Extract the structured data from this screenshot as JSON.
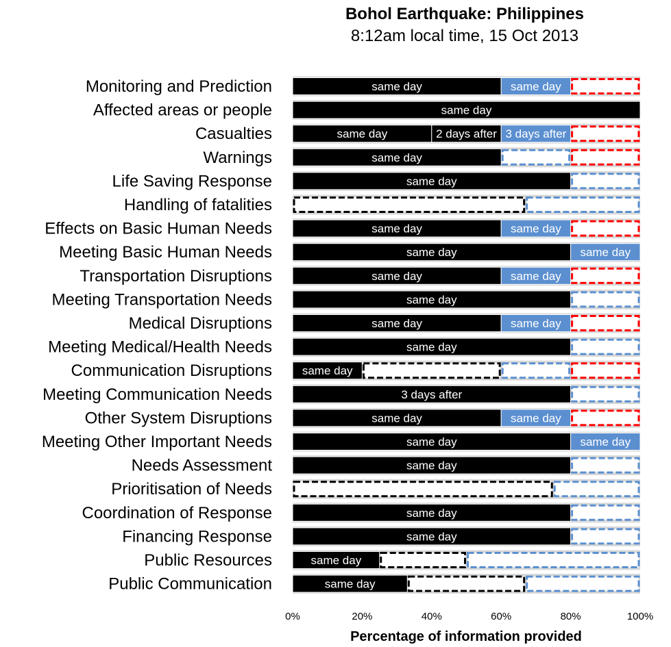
{
  "chart_data": {
    "type": "bar",
    "orientation": "horizontal",
    "stacked": true,
    "title": "Bohol Earthquake: Philippines",
    "subtitle": "8:12am local time, 15 Oct 2013",
    "xlabel": "Percentage of information provided",
    "xlim": [
      0,
      100
    ],
    "x_ticks": [
      "0%",
      "20%",
      "40%",
      "60%",
      "80%",
      "100%"
    ],
    "colors": {
      "solid_black": "#000000",
      "solid_blue": "#5b8fd0",
      "outline_black": "#000000",
      "outline_blue": "#5b8fd0",
      "outline_red": "#ff0000"
    },
    "categories": [
      {
        "label": "Monitoring and Prediction",
        "segments": [
          {
            "start": 0,
            "end": 60,
            "style": "solid_black",
            "label": "same day"
          },
          {
            "start": 60,
            "end": 80,
            "style": "solid_blue",
            "label": "same day"
          },
          {
            "start": 80,
            "end": 100,
            "style": "outline_red",
            "label": ""
          }
        ]
      },
      {
        "label": "Affected areas or people",
        "segments": [
          {
            "start": 0,
            "end": 100,
            "style": "solid_black",
            "label": "same day"
          }
        ]
      },
      {
        "label": "Casualties",
        "segments": [
          {
            "start": 0,
            "end": 40,
            "style": "solid_black",
            "label": "same day"
          },
          {
            "start": 40,
            "end": 60,
            "style": "solid_black",
            "label": "2 days after"
          },
          {
            "start": 60,
            "end": 80,
            "style": "solid_blue",
            "label": "3 days after"
          },
          {
            "start": 80,
            "end": 100,
            "style": "outline_red",
            "label": ""
          }
        ]
      },
      {
        "label": "Warnings",
        "segments": [
          {
            "start": 0,
            "end": 60,
            "style": "solid_black",
            "label": "same day"
          },
          {
            "start": 60,
            "end": 80,
            "style": "outline_blue",
            "label": ""
          },
          {
            "start": 80,
            "end": 100,
            "style": "outline_red",
            "label": ""
          }
        ]
      },
      {
        "label": "Life Saving Response",
        "segments": [
          {
            "start": 0,
            "end": 80,
            "style": "solid_black",
            "label": "same day"
          },
          {
            "start": 80,
            "end": 100,
            "style": "outline_blue",
            "label": ""
          }
        ]
      },
      {
        "label": "Handling of fatalities",
        "segments": [
          {
            "start": 0,
            "end": 67,
            "style": "outline_black",
            "label": ""
          },
          {
            "start": 67,
            "end": 100,
            "style": "outline_blue",
            "label": ""
          }
        ]
      },
      {
        "label": "Effects on Basic Human Needs",
        "segments": [
          {
            "start": 0,
            "end": 60,
            "style": "solid_black",
            "label": "same day"
          },
          {
            "start": 60,
            "end": 80,
            "style": "solid_blue",
            "label": "same day"
          },
          {
            "start": 80,
            "end": 100,
            "style": "outline_red",
            "label": ""
          }
        ]
      },
      {
        "label": "Meeting Basic Human Needs",
        "segments": [
          {
            "start": 0,
            "end": 80,
            "style": "solid_black",
            "label": "same day"
          },
          {
            "start": 80,
            "end": 100,
            "style": "solid_blue",
            "label": "same day"
          }
        ]
      },
      {
        "label": "Transportation Disruptions",
        "segments": [
          {
            "start": 0,
            "end": 60,
            "style": "solid_black",
            "label": "same day"
          },
          {
            "start": 60,
            "end": 80,
            "style": "solid_blue",
            "label": "same day"
          },
          {
            "start": 80,
            "end": 100,
            "style": "outline_red",
            "label": ""
          }
        ]
      },
      {
        "label": "Meeting Transportation Needs",
        "segments": [
          {
            "start": 0,
            "end": 80,
            "style": "solid_black",
            "label": "same day"
          },
          {
            "start": 80,
            "end": 100,
            "style": "outline_blue",
            "label": ""
          }
        ]
      },
      {
        "label": "Medical Disruptions",
        "segments": [
          {
            "start": 0,
            "end": 60,
            "style": "solid_black",
            "label": "same day"
          },
          {
            "start": 60,
            "end": 80,
            "style": "solid_blue",
            "label": "same day"
          },
          {
            "start": 80,
            "end": 100,
            "style": "outline_red",
            "label": ""
          }
        ]
      },
      {
        "label": "Meeting Medical/Health Needs",
        "segments": [
          {
            "start": 0,
            "end": 80,
            "style": "solid_black",
            "label": "same day"
          },
          {
            "start": 80,
            "end": 100,
            "style": "outline_blue",
            "label": ""
          }
        ]
      },
      {
        "label": "Communication Disruptions",
        "segments": [
          {
            "start": 0,
            "end": 20,
            "style": "solid_black",
            "label": "same day"
          },
          {
            "start": 20,
            "end": 60,
            "style": "outline_black",
            "label": ""
          },
          {
            "start": 60,
            "end": 80,
            "style": "outline_blue",
            "label": ""
          },
          {
            "start": 80,
            "end": 100,
            "style": "outline_red",
            "label": ""
          }
        ]
      },
      {
        "label": "Meeting Communication Needs",
        "segments": [
          {
            "start": 0,
            "end": 80,
            "style": "solid_black",
            "label": "3 days after"
          },
          {
            "start": 80,
            "end": 100,
            "style": "outline_blue",
            "label": ""
          }
        ]
      },
      {
        "label": "Other System Disruptions",
        "segments": [
          {
            "start": 0,
            "end": 60,
            "style": "solid_black",
            "label": "same day"
          },
          {
            "start": 60,
            "end": 80,
            "style": "solid_blue",
            "label": "same day"
          },
          {
            "start": 80,
            "end": 100,
            "style": "outline_red",
            "label": ""
          }
        ]
      },
      {
        "label": "Meeting Other Important Needs",
        "segments": [
          {
            "start": 0,
            "end": 80,
            "style": "solid_black",
            "label": "same day"
          },
          {
            "start": 80,
            "end": 100,
            "style": "solid_blue",
            "label": "same day"
          }
        ]
      },
      {
        "label": "Needs Assessment",
        "segments": [
          {
            "start": 0,
            "end": 80,
            "style": "solid_black",
            "label": "same day"
          },
          {
            "start": 80,
            "end": 100,
            "style": "outline_blue",
            "label": ""
          }
        ]
      },
      {
        "label": "Prioritisation of Needs",
        "segments": [
          {
            "start": 0,
            "end": 75,
            "style": "outline_black",
            "label": ""
          },
          {
            "start": 75,
            "end": 100,
            "style": "outline_blue",
            "label": ""
          }
        ]
      },
      {
        "label": "Coordination of Response",
        "segments": [
          {
            "start": 0,
            "end": 80,
            "style": "solid_black",
            "label": "same day"
          },
          {
            "start": 80,
            "end": 100,
            "style": "outline_blue",
            "label": ""
          }
        ]
      },
      {
        "label": "Financing Response",
        "segments": [
          {
            "start": 0,
            "end": 80,
            "style": "solid_black",
            "label": "same day"
          },
          {
            "start": 80,
            "end": 100,
            "style": "outline_blue",
            "label": ""
          }
        ]
      },
      {
        "label": "Public Resources",
        "segments": [
          {
            "start": 0,
            "end": 25,
            "style": "solid_black",
            "label": "same day"
          },
          {
            "start": 25,
            "end": 50,
            "style": "outline_black",
            "label": ""
          },
          {
            "start": 50,
            "end": 100,
            "style": "outline_blue",
            "label": ""
          }
        ]
      },
      {
        "label": "Public Communication",
        "segments": [
          {
            "start": 0,
            "end": 33,
            "style": "solid_black",
            "label": "same day"
          },
          {
            "start": 33,
            "end": 67,
            "style": "outline_black",
            "label": ""
          },
          {
            "start": 67,
            "end": 100,
            "style": "outline_blue",
            "label": ""
          }
        ]
      }
    ]
  }
}
